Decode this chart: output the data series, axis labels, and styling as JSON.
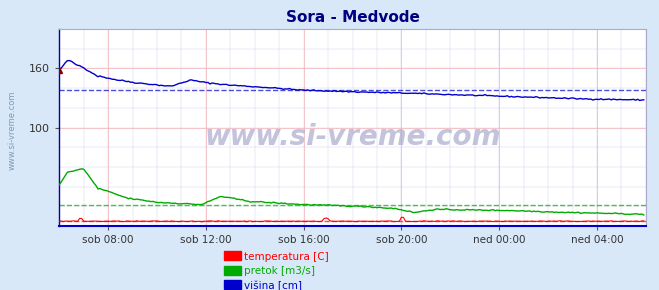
{
  "title": "Sora - Medvode",
  "title_color": "#000080",
  "bg_color": "#d8e8f8",
  "plot_bg_color": "#ffffff",
  "grid_color_major": "#ffcccc",
  "grid_color_minor": "#e8e8ff",
  "xlabel_ticks": [
    "sob 08:00",
    "sob 12:00",
    "sob 16:00",
    "sob 20:00",
    "ned 00:00",
    "ned 04:00"
  ],
  "ylabel_ticks": [
    100,
    160
  ],
  "ylim": [
    0,
    200
  ],
  "xlim": [
    0,
    288
  ],
  "watermark": "www.si-vreme.com",
  "legend": [
    {
      "label": "temperatura [C]",
      "color": "#ff0000"
    },
    {
      "label": "pretok [m3/s]",
      "color": "#00aa00"
    },
    {
      "label": "višina [cm]",
      "color": "#0000cc"
    }
  ],
  "avg_line_blue": 138,
  "avg_line_green": 22,
  "avg_line_red": 5,
  "tick_positions_x": [
    24,
    72,
    120,
    168,
    216,
    264
  ],
  "tick_labels_x": [
    "sob 08:00",
    "sob 12:00",
    "sob 16:00",
    "sob 20:00",
    "ned 00:00",
    "ned 04:00"
  ]
}
